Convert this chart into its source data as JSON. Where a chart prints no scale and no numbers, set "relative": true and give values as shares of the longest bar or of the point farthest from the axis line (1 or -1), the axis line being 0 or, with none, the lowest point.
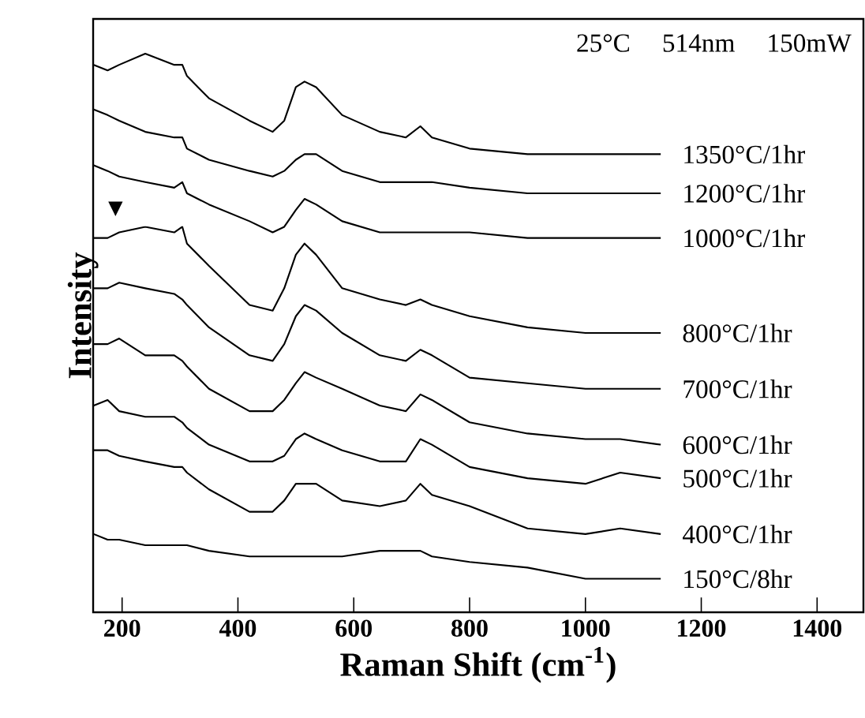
{
  "chart_data": {
    "type": "line",
    "relative": true,
    "xlabel": "Raman Shift (cm$^{-1}$)",
    "ylabel": "Intensity",
    "annotations": [
      "25°C",
      "514nm",
      "150mW",
      "▼"
    ],
    "x": [
      151,
      175,
      195,
      240,
      290,
      304,
      312,
      350,
      420,
      460,
      480,
      500,
      515,
      535,
      580,
      645,
      690,
      715,
      735,
      800,
      900,
      1000,
      1060,
      1130
    ],
    "xlim": [
      150,
      1480
    ],
    "xticks": [
      200,
      400,
      600,
      800,
      1000,
      1200,
      1400
    ],
    "grid": false,
    "series": [
      {
        "name": "1350°C/1hr",
        "color": "#000000",
        "values": [
          0.98,
          0.97,
          0.98,
          1,
          0.98,
          0.98,
          0.96,
          0.92,
          0.88,
          0.86,
          0.88,
          0.94,
          0.95,
          0.94,
          0.89,
          0.86,
          0.85,
          0.87,
          0.85,
          0.83,
          0.82,
          0.82,
          0.82,
          0.82
        ]
      },
      {
        "name": "1200°C/1hr",
        "color": "#000000",
        "values": [
          0.9,
          0.89,
          0.88,
          0.86,
          0.85,
          0.85,
          0.83,
          0.81,
          0.79,
          0.78,
          0.79,
          0.81,
          0.82,
          0.82,
          0.79,
          0.77,
          0.77,
          0.77,
          0.77,
          0.76,
          0.75,
          0.75,
          0.75,
          0.75
        ]
      },
      {
        "name": "1000°C/1hr",
        "color": "#000000",
        "values": [
          0.8,
          0.79,
          0.78,
          0.77,
          0.76,
          0.77,
          0.75,
          0.73,
          0.7,
          0.68,
          0.69,
          0.72,
          0.74,
          0.73,
          0.7,
          0.68,
          0.68,
          0.68,
          0.68,
          0.68,
          0.67,
          0.67,
          0.67,
          0.67
        ]
      },
      {
        "name": "800°C/1hr",
        "color": "#000000",
        "values": [
          0.67,
          0.67,
          0.68,
          0.69,
          0.68,
          0.69,
          0.66,
          0.62,
          0.55,
          0.54,
          0.58,
          0.64,
          0.66,
          0.64,
          0.58,
          0.56,
          0.55,
          0.56,
          0.55,
          0.53,
          0.51,
          0.5,
          0.5,
          0.5
        ]
      },
      {
        "name": "700°C/1hr",
        "color": "#000000",
        "values": [
          0.58,
          0.58,
          0.59,
          0.58,
          0.57,
          0.56,
          0.55,
          0.51,
          0.46,
          0.45,
          0.48,
          0.53,
          0.55,
          0.54,
          0.5,
          0.46,
          0.45,
          0.47,
          0.46,
          0.42,
          0.41,
          0.4,
          0.4,
          0.4
        ]
      },
      {
        "name": "600°C/1hr",
        "color": "#000000",
        "values": [
          0.48,
          0.48,
          0.49,
          0.46,
          0.46,
          0.45,
          0.44,
          0.4,
          0.36,
          0.36,
          0.38,
          0.41,
          0.43,
          0.42,
          0.4,
          0.37,
          0.36,
          0.39,
          0.38,
          0.34,
          0.32,
          0.31,
          0.31,
          0.3
        ]
      },
      {
        "name": "500°C/1hr",
        "color": "#000000",
        "values": [
          0.37,
          0.38,
          0.36,
          0.35,
          0.35,
          0.34,
          0.33,
          0.3,
          0.27,
          0.27,
          0.28,
          0.31,
          0.32,
          0.31,
          0.29,
          0.27,
          0.27,
          0.31,
          0.3,
          0.26,
          0.24,
          0.23,
          0.25,
          0.24
        ]
      },
      {
        "name": "400°C/1hr",
        "color": "#000000",
        "values": [
          0.29,
          0.29,
          0.28,
          0.27,
          0.26,
          0.26,
          0.25,
          0.22,
          0.18,
          0.18,
          0.2,
          0.23,
          0.23,
          0.23,
          0.2,
          0.19,
          0.2,
          0.23,
          0.21,
          0.19,
          0.15,
          0.14,
          0.15,
          0.14
        ]
      },
      {
        "name": "150°C/8hr",
        "color": "#000000",
        "values": [
          0.14,
          0.13,
          0.13,
          0.12,
          0.12,
          0.12,
          0.12,
          0.11,
          0.1,
          0.1,
          0.1,
          0.1,
          0.1,
          0.1,
          0.1,
          0.11,
          0.11,
          0.11,
          0.1,
          0.09,
          0.08,
          0.06,
          0.06,
          0.06
        ]
      }
    ]
  }
}
